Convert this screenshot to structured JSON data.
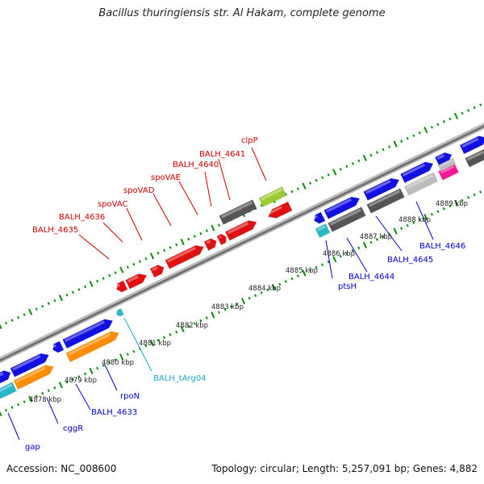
{
  "title": "Bacillus thuringiensis str. Al Hakam, complete genome",
  "footer": {
    "accession": "Accession: NC_008600",
    "topology": "Topology: circular; Length: 5,257,091 bp; Genes: 4,882"
  },
  "colors": {
    "cds_blue": "#1010e0",
    "cds_red": "#e01010",
    "cds_orange": "#ff8c00",
    "cds_gray": "#555555",
    "cds_light_gray": "#bdbdbd",
    "cds_cyan": "#2ab7c9",
    "cds_magenta": "#ff1493",
    "cds_lime": "#9acd32",
    "backbone": "#8a8a8a",
    "tick_green": "#0a8a0a",
    "label_red": "#cc0000",
    "label_blue": "#0000cc",
    "label_cyan": "#1aa9cc"
  },
  "scale_labels": [
    "4878 kbp",
    "4879 kbp",
    "4880 kbp",
    "4881 kbp",
    "4882 kbp",
    "4883 kbp",
    "4884 kbp",
    "4885 kbp",
    "4886 kbp",
    "4887 kbp",
    "4888 kbp",
    "4889 kbp"
  ],
  "gene_labels": {
    "red": [
      "BALH_4635",
      "BALH_4636",
      "spoVAC",
      "spoVAD",
      "spoVAE",
      "BALH_4640",
      "BALH_4641",
      "clpP"
    ],
    "blue": [
      "gap",
      "cggR",
      "BALH_4633",
      "rpoN",
      "ptsH",
      "BALH_4644",
      "BALH_4645",
      "BALH_4646"
    ],
    "cyan": [
      "BALH_tArg04"
    ]
  }
}
